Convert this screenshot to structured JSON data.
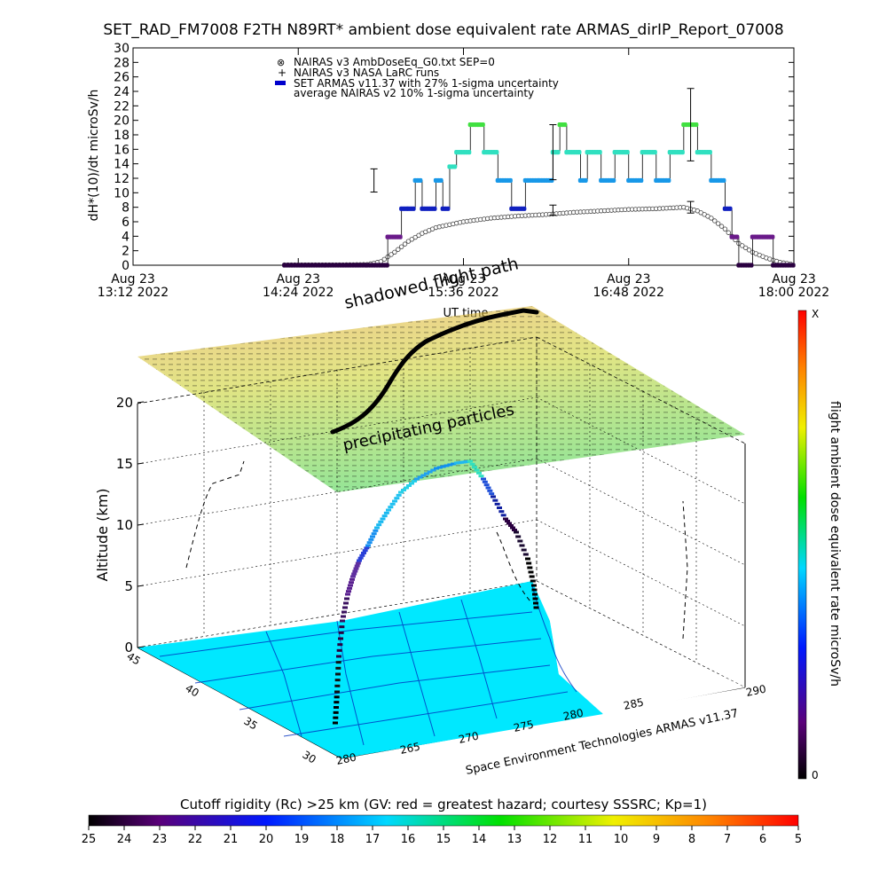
{
  "title": "SET_RAD_FM7008  F2TH N89RT* ambient dose equivalent rate ARMAS_dirIP_Report_07008",
  "chart_data": [
    {
      "type": "scatter",
      "panel": "dose-time-series",
      "ylabel": "dH*(10)/dt microSv/h",
      "xlabel": "UT time",
      "ylim": [
        0,
        30
      ],
      "xlim": [
        "2022-08-23 13:12",
        "2022-08-23 18:00"
      ],
      "y_ticks": [
        "0",
        "2",
        "4",
        "6",
        "8",
        "10",
        "12",
        "14",
        "16",
        "18",
        "20",
        "22",
        "24",
        "26",
        "28",
        "30"
      ],
      "x_ticks": [
        {
          "line1": "Aug 23",
          "line2": "13:12 2022"
        },
        {
          "line1": "Aug 23",
          "line2": "14:24 2022"
        },
        {
          "line1": "Aug 23",
          "line2": "15:36 2022"
        },
        {
          "line1": "Aug 23",
          "line2": "16:48 2022"
        },
        {
          "line1": "Aug 23",
          "line2": "18:00 2022"
        }
      ],
      "legend": [
        {
          "symbol": "⊗",
          "label": "NAIRAS v3 AmbDoseEq_G0.txt SEP=0"
        },
        {
          "symbol": "+",
          "label": "NAIRAS v3 NASA LaRC runs"
        },
        {
          "symbol": "▬",
          "label": "SET ARMAS v11.37 with 27% 1-sigma uncertainty",
          "color": "#0000cc"
        },
        {
          "symbol": "",
          "label": "average NAIRAS v2 10% 1-sigma uncertainty"
        }
      ],
      "series": [
        {
          "name": "NAIRAS v3 AmbDoseEq_G0.txt SEP=0",
          "points": [
            [
              14.3,
              0.05
            ],
            [
              14.5,
              0.05
            ],
            [
              14.7,
              0.05
            ],
            [
              14.9,
              0.1
            ],
            [
              15.0,
              0.5
            ],
            [
              15.1,
              1.8
            ],
            [
              15.2,
              3.3
            ],
            [
              15.3,
              4.4
            ],
            [
              15.4,
              5.2
            ],
            [
              15.5,
              5.6
            ],
            [
              15.6,
              6.0
            ],
            [
              15.8,
              6.5
            ],
            [
              16.0,
              6.8
            ],
            [
              16.2,
              7.0
            ],
            [
              16.4,
              7.3
            ],
            [
              16.6,
              7.5
            ],
            [
              16.8,
              7.7
            ],
            [
              17.0,
              7.8
            ],
            [
              17.2,
              8.0
            ],
            [
              17.3,
              7.5
            ],
            [
              17.4,
              6.5
            ],
            [
              17.5,
              5.0
            ],
            [
              17.6,
              3.0
            ],
            [
              17.7,
              1.8
            ],
            [
              17.8,
              1.0
            ],
            [
              17.9,
              0.4
            ],
            [
              18.0,
              0.1
            ]
          ]
        },
        {
          "name": "SET ARMAS v11.37",
          "points": [
            [
              14.3,
              0.0
            ],
            [
              14.6,
              0.0
            ],
            [
              14.9,
              0.0
            ],
            [
              15.05,
              3.9
            ],
            [
              15.15,
              7.8
            ],
            [
              15.2,
              7.8
            ],
            [
              15.25,
              11.7
            ],
            [
              15.3,
              7.8
            ],
            [
              15.4,
              11.7
            ],
            [
              15.45,
              7.8
            ],
            [
              15.5,
              13.6
            ],
            [
              15.55,
              15.6
            ],
            [
              15.65,
              19.4
            ],
            [
              15.75,
              15.6
            ],
            [
              15.85,
              11.7
            ],
            [
              15.95,
              7.8
            ],
            [
              16.05,
              11.7
            ],
            [
              16.15,
              11.7
            ],
            [
              16.25,
              15.6
            ],
            [
              16.3,
              19.4
            ],
            [
              16.35,
              15.6
            ],
            [
              16.45,
              11.7
            ],
            [
              16.5,
              15.6
            ],
            [
              16.6,
              11.7
            ],
            [
              16.7,
              15.6
            ],
            [
              16.8,
              11.7
            ],
            [
              16.9,
              15.6
            ],
            [
              17.0,
              11.7
            ],
            [
              17.1,
              15.6
            ],
            [
              17.2,
              19.4
            ],
            [
              17.3,
              15.6
            ],
            [
              17.4,
              11.7
            ],
            [
              17.5,
              7.8
            ],
            [
              17.55,
              3.9
            ],
            [
              17.6,
              0.0
            ],
            [
              17.7,
              3.9
            ],
            [
              17.85,
              0.0
            ],
            [
              18.0,
              0.0
            ]
          ]
        }
      ],
      "error_bars": [
        {
          "x": 14.95,
          "y": 11.7,
          "err": 1.6
        },
        {
          "x": 16.25,
          "y": 15.6,
          "err": 3.8
        },
        {
          "x": 16.25,
          "y": 7.6,
          "err": 0.7
        },
        {
          "x": 17.25,
          "y": 19.4,
          "err": 5.0
        },
        {
          "x": 17.25,
          "y": 8.0,
          "err": 0.8
        }
      ]
    },
    {
      "type": "3d-scatter",
      "panel": "flight-path-3d",
      "zlabel": "Altitude (km)",
      "z_ticks": [
        "0",
        "5",
        "10",
        "15",
        "20"
      ],
      "lat_ticks": [
        "45",
        "40",
        "35",
        "30"
      ],
      "lon_ticks": [
        "280",
        "265",
        "270",
        "275",
        "280",
        "285",
        "290"
      ],
      "annotations": [
        "shadowed flight path",
        "precipitating particles",
        "UT time"
      ],
      "credit": "Space Environment Technologies ARMAS v11.37"
    }
  ],
  "colorbar_right": {
    "label": "flight ambient dose equivalent rate microSv/h",
    "top": "X",
    "bottom": "0"
  },
  "colorbar_bottom": {
    "title": "Cutoff rigidity (Rc) >25 km (GV: red = greatest hazard; courtesy SSSRC; Kp=1)",
    "ticks": [
      "25",
      "24",
      "23",
      "22",
      "21",
      "20",
      "19",
      "18",
      "17",
      "16",
      "15",
      "14",
      "13",
      "12",
      "11",
      "10",
      "9",
      "8",
      "7",
      "6",
      "5"
    ]
  }
}
